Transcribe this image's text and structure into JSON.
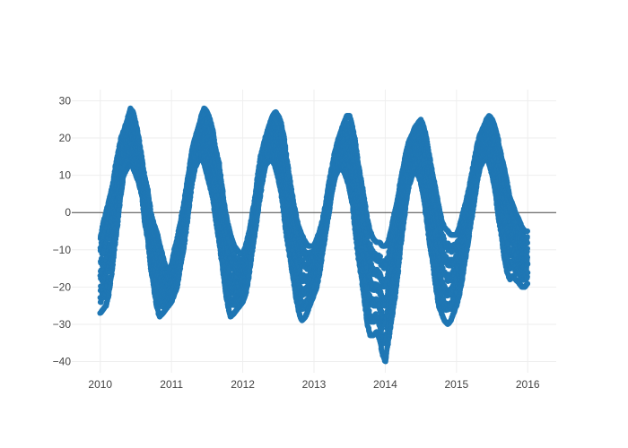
{
  "chart_data": {
    "type": "scatter",
    "title": "",
    "xlabel": "",
    "ylabel": "",
    "xlim": [
      2009.6,
      2016.4
    ],
    "ylim": [
      -43,
      33
    ],
    "x_ticks": [
      2010,
      2011,
      2012,
      2013,
      2014,
      2015,
      2016
    ],
    "x_tick_labels": [
      "2010",
      "2011",
      "2012",
      "2013",
      "2014",
      "2015",
      "2016"
    ],
    "y_ticks": [
      -40,
      -30,
      -20,
      -10,
      0,
      10,
      20,
      30
    ],
    "y_tick_labels": [
      "−40",
      "−30",
      "−20",
      "−10",
      "0",
      "10",
      "20",
      "30"
    ],
    "grid": true,
    "zero_line": true,
    "legend": "none",
    "marker_color": "#1f77b4",
    "series": [
      {
        "x": [
          2010.0,
          2010.04,
          2010.08,
          2010.12,
          2010.17,
          2010.21,
          2010.25,
          2010.29,
          2010.33,
          2010.38,
          2010.42,
          2010.46,
          2010.5,
          2010.54,
          2010.58,
          2010.62,
          2010.67,
          2010.71,
          2010.75,
          2010.79,
          2010.83,
          2010.88,
          2010.92,
          2010.96,
          2011.0,
          2011.04,
          2011.08,
          2011.12,
          2011.17,
          2011.21,
          2011.25,
          2011.29,
          2011.33,
          2011.38,
          2011.42,
          2011.46,
          2011.5,
          2011.54,
          2011.58,
          2011.62,
          2011.67,
          2011.71,
          2011.75,
          2011.79,
          2011.83,
          2011.88,
          2011.92,
          2011.96,
          2012.0,
          2012.04,
          2012.08,
          2012.12,
          2012.17,
          2012.21,
          2012.25,
          2012.29,
          2012.33,
          2012.38,
          2012.42,
          2012.46,
          2012.5,
          2012.54,
          2012.58,
          2012.62,
          2012.67,
          2012.71,
          2012.75,
          2012.79,
          2012.83,
          2012.88,
          2012.92,
          2012.96,
          2013.0,
          2013.04,
          2013.08,
          2013.12,
          2013.17,
          2013.21,
          2013.25,
          2013.29,
          2013.33,
          2013.38,
          2013.42,
          2013.46,
          2013.5,
          2013.54,
          2013.58,
          2013.62,
          2013.67,
          2013.71,
          2013.75,
          2013.79,
          2013.83,
          2013.88,
          2013.92,
          2013.96,
          2014.0,
          2014.04,
          2014.08,
          2014.12,
          2014.17,
          2014.21,
          2014.25,
          2014.29,
          2014.33,
          2014.38,
          2014.42,
          2014.46,
          2014.5,
          2014.54,
          2014.58,
          2014.62,
          2014.67,
          2014.71,
          2014.75,
          2014.79,
          2014.83,
          2014.88,
          2014.92,
          2014.96,
          2015.0,
          2015.04,
          2015.08,
          2015.12,
          2015.17,
          2015.21,
          2015.25,
          2015.29,
          2015.33,
          2015.38,
          2015.42,
          2015.46,
          2015.5,
          2015.54,
          2015.58,
          2015.62,
          2015.67,
          2015.71,
          2015.75,
          2015.79,
          2015.83,
          2015.88,
          2015.92,
          2015.96,
          2016.0
        ],
        "y_min": [
          -27,
          -26,
          -25,
          -22,
          -15,
          -8,
          -2,
          5,
          10,
          12,
          13,
          12,
          10,
          8,
          5,
          -2,
          -8,
          -15,
          -20,
          -25,
          -28,
          -27,
          -26,
          -25,
          -24,
          -22,
          -20,
          -15,
          -10,
          -4,
          2,
          8,
          12,
          14,
          15,
          13,
          10,
          7,
          4,
          -2,
          -8,
          -14,
          -20,
          -25,
          -28,
          -27,
          -26,
          -25,
          -24,
          -22,
          -18,
          -12,
          -6,
          0,
          5,
          10,
          13,
          14,
          14,
          12,
          9,
          5,
          -1,
          -7,
          -13,
          -18,
          -23,
          -27,
          -29,
          -28,
          -26,
          -24,
          -22,
          -20,
          -16,
          -11,
          -5,
          0,
          5,
          9,
          11,
          12,
          11,
          9,
          6,
          2,
          -5,
          -12,
          -18,
          -24,
          -30,
          -33,
          -33,
          -32,
          -34,
          -38,
          -40,
          -35,
          -30,
          -25,
          -18,
          -10,
          -4,
          2,
          7,
          10,
          11,
          10,
          8,
          4,
          -2,
          -8,
          -14,
          -20,
          -25,
          -27,
          -29,
          -30,
          -29,
          -27,
          -25,
          -22,
          -18,
          -13,
          -7,
          -2,
          3,
          8,
          12,
          14,
          15,
          13,
          10,
          6,
          0,
          -5,
          -12,
          -16,
          -18,
          -17,
          -18,
          -19,
          -20,
          -20,
          -19
        ],
        "y_max": [
          -7,
          -3,
          0,
          3,
          7,
          12,
          16,
          20,
          22,
          25,
          28,
          27,
          24,
          20,
          15,
          10,
          6,
          0,
          -3,
          -5,
          -8,
          -12,
          -15,
          -15,
          -14,
          -10,
          -7,
          -3,
          2,
          7,
          12,
          17,
          20,
          23,
          26,
          28,
          27,
          25,
          22,
          17,
          13,
          7,
          1,
          -3,
          -6,
          -9,
          -10,
          -11,
          -11,
          -9,
          -6,
          -2,
          4,
          10,
          15,
          18,
          21,
          24,
          26,
          27,
          26,
          24,
          20,
          14,
          8,
          3,
          -1,
          -4,
          -6,
          -8,
          -9,
          -9,
          -9,
          -7,
          -5,
          -2,
          3,
          8,
          12,
          16,
          19,
          22,
          24,
          26,
          26,
          23,
          19,
          13,
          8,
          3,
          -2,
          -5,
          -7,
          -8,
          -8,
          -9,
          -9,
          -8,
          -5,
          -1,
          3,
          8,
          12,
          16,
          19,
          21,
          23,
          24,
          25,
          23,
          20,
          15,
          10,
          6,
          2,
          -2,
          -4,
          -5,
          -6,
          -6,
          -6,
          -4,
          -1,
          2,
          6,
          10,
          14,
          18,
          21,
          23,
          25,
          26,
          25,
          23,
          20,
          16,
          12,
          8,
          4,
          2,
          0,
          -2,
          -4,
          -5,
          -5
        ]
      }
    ]
  }
}
